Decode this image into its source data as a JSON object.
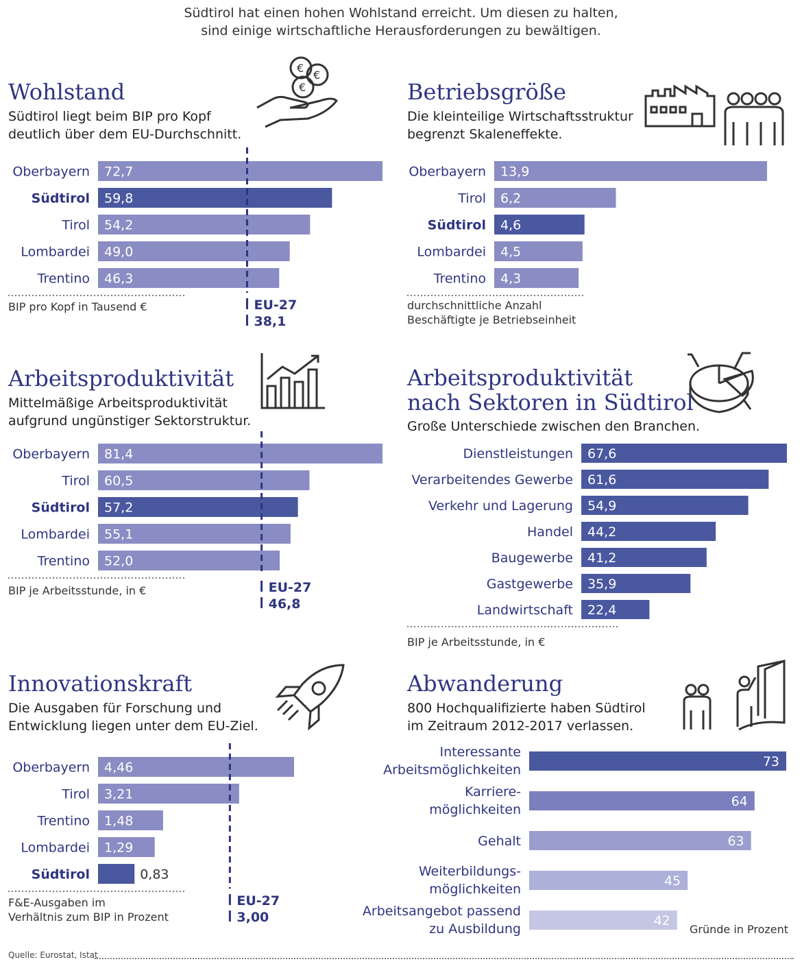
{
  "intro": {
    "line1": "Südtirol hat einen hohen Wohlstand erreicht. Um diesen zu halten,",
    "line2": "sind einige wirtschaftliche Herausforderungen zu bewältigen."
  },
  "colors": {
    "dark": "#4a58a0",
    "medium": "#8a8dc3",
    "title": "#2e3580"
  },
  "panels": {
    "wohlstand": {
      "title": "Wohlstand",
      "subtitle": [
        "Südtirol liegt beim BIP pro Kopf",
        "deutlich über dem EU-Durchschnitt."
      ],
      "note": [
        "BIP pro Kopf in Tausend €"
      ],
      "icon": "hand-coins-icon"
    },
    "betrieb": {
      "title": "Betriebsgröße",
      "subtitle": [
        "Die kleinteilige Wirtschaftsstruktur",
        "begrenzt Skaleneffekte."
      ],
      "note": [
        "durchschnittliche Anzahl",
        "Beschäftigte je Betriebseinheit"
      ],
      "icon": "factory-workers-icon"
    },
    "produktivitaet": {
      "title": "Arbeitsproduktivität",
      "subtitle": [
        "Mittelmäßige Arbeitsproduktivität",
        "aufgrund ungünstiger Sektorstruktur."
      ],
      "note": [
        "BIP je Arbeitsstunde, in €"
      ],
      "icon": "rising-bar-chart-icon"
    },
    "sektoren": {
      "title": [
        "Arbeitsproduktivität",
        "nach Sektoren in Südtirol"
      ],
      "subtitle": [
        "Große Unterschiede zwischen den Branchen."
      ],
      "note": [
        "BIP je Arbeitsstunde, in €"
      ],
      "icon": "pie-chart-icon"
    },
    "innovation": {
      "title": "Innovationskraft",
      "subtitle": [
        "Die Ausgaben für Forschung und",
        "Entwicklung liegen unter dem EU-Ziel."
      ],
      "note": [
        "F&E-Ausgaben im",
        "Verhältnis zum BIP in Prozent"
      ],
      "icon": "rocket-icon"
    },
    "abwanderung": {
      "title": "Abwanderung",
      "subtitle": [
        "800 Hochqualifizierte haben Südtirol",
        "im Zeitraum 2012-2017 verlassen."
      ],
      "note": [
        "Gründe in Prozent"
      ],
      "icon": "people-leaving-door-icon"
    }
  },
  "chart_data": [
    {
      "id": "wohlstand",
      "type": "bar",
      "orientation": "horizontal",
      "categories": [
        "Oberbayern",
        "Südtirol",
        "Tirol",
        "Lombardei",
        "Trentino"
      ],
      "values": [
        72.7,
        59.8,
        54.2,
        49.0,
        46.3
      ],
      "labels": [
        "72,7",
        "59,8",
        "54,2",
        "49,0",
        "46,3"
      ],
      "highlight": "Südtirol",
      "reference": {
        "name": "EU-27",
        "value": 38.1,
        "label": "38,1"
      },
      "xlim": [
        0,
        72.7
      ]
    },
    {
      "id": "betrieb",
      "type": "bar",
      "orientation": "horizontal",
      "categories": [
        "Oberbayern",
        "Tirol",
        "Südtirol",
        "Lombardei",
        "Trentino"
      ],
      "values": [
        13.9,
        6.2,
        4.6,
        4.5,
        4.3
      ],
      "labels": [
        "13,9",
        "6,2",
        "4,6",
        "4,5",
        "4,3"
      ],
      "highlight": "Südtirol",
      "xlim": [
        0,
        13.9
      ]
    },
    {
      "id": "produktivitaet",
      "type": "bar",
      "orientation": "horizontal",
      "categories": [
        "Oberbayern",
        "Tirol",
        "Südtirol",
        "Lombardei",
        "Trentino"
      ],
      "values": [
        81.4,
        60.5,
        57.2,
        55.1,
        52.0
      ],
      "labels": [
        "81,4",
        "60,5",
        "57,2",
        "55,1",
        "52,0"
      ],
      "highlight": "Südtirol",
      "reference": {
        "name": "EU-27",
        "value": 46.8,
        "label": "46,8"
      },
      "xlim": [
        0,
        81.4
      ]
    },
    {
      "id": "sektoren",
      "type": "bar",
      "orientation": "horizontal",
      "categories": [
        "Dienstleistungen",
        "Verarbeitendes Gewerbe",
        "Verkehr und Lagerung",
        "Handel",
        "Baugewerbe",
        "Gastgewerbe",
        "Landwirtschaft"
      ],
      "values": [
        67.6,
        61.6,
        54.9,
        44.2,
        41.2,
        35.9,
        22.4
      ],
      "labels": [
        "67,6",
        "61,6",
        "54,9",
        "44,2",
        "41,2",
        "35,9",
        "22,4"
      ],
      "xlim": [
        0,
        67.6
      ]
    },
    {
      "id": "innovation",
      "type": "bar",
      "orientation": "horizontal",
      "categories": [
        "Oberbayern",
        "Tirol",
        "Trentino",
        "Lombardei",
        "Südtirol"
      ],
      "values": [
        4.46,
        3.21,
        1.48,
        1.29,
        0.83
      ],
      "labels": [
        "4,46",
        "3,21",
        "1,48",
        "1,29",
        "0,83"
      ],
      "highlight": "Südtirol",
      "reference": {
        "name": "EU-27",
        "value": 3.0,
        "label": "3,00"
      },
      "xlim": [
        0,
        4.46
      ]
    },
    {
      "id": "abwanderung",
      "type": "bar",
      "orientation": "horizontal",
      "categories": [
        [
          "Interessante",
          "Arbeitsmöglichkeiten"
        ],
        [
          "Karriere-",
          "möglichkeiten"
        ],
        [
          "Gehalt"
        ],
        [
          "Weiterbildungs-",
          "möglichkeiten"
        ],
        [
          "Arbeitsangebot passend",
          "zu Ausbildung"
        ]
      ],
      "values": [
        73,
        64,
        63,
        45,
        42
      ],
      "labels": [
        "73",
        "64",
        "63",
        "45",
        "42"
      ],
      "bar_colors": [
        "#4a58a0",
        "#7c7fbe",
        "#9a9dce",
        "#adb0d8",
        "#c4c6e3"
      ],
      "xlim": [
        0,
        73
      ]
    }
  ],
  "source": "Quelle: Eurostat, Istat"
}
